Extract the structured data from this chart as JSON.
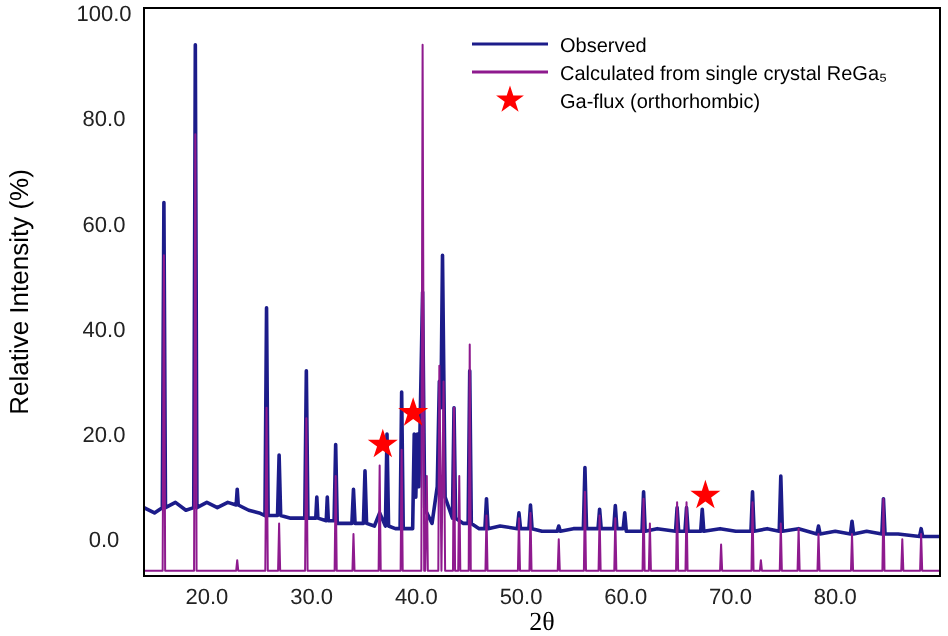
{
  "chart_data": {
    "type": "line",
    "xlabel": "2θ",
    "ylabel": "Relative Intensity (%)",
    "xlim": [
      14,
      90
    ],
    "ylim": [
      -7,
      101
    ],
    "xticks": [
      {
        "value": 20,
        "label": "20.0"
      },
      {
        "value": 30,
        "label": "30.0"
      },
      {
        "value": 40,
        "label": "40.0"
      },
      {
        "value": 50,
        "label": "50.0"
      },
      {
        "value": 60,
        "label": "60.0"
      },
      {
        "value": 70,
        "label": "70.0"
      },
      {
        "value": 80,
        "label": "80.0"
      }
    ],
    "yticks": [
      {
        "value": 0,
        "label": "0.0"
      },
      {
        "value": 20,
        "label": "20.0"
      },
      {
        "value": 40,
        "label": "40.0"
      },
      {
        "value": 60,
        "label": "60.0"
      },
      {
        "value": 80,
        "label": "80.0"
      },
      {
        "value": 100,
        "label": "100.0"
      }
    ],
    "grid": false,
    "legend": "top right",
    "series": [
      {
        "name": "Observed",
        "color": "#1c1c8a",
        "x": [
          14,
          15.0,
          15.75,
          15.9,
          16.05,
          17.0,
          18.0,
          18.75,
          18.9,
          19.05,
          20.0,
          21.0,
          22.0,
          22.8,
          22.9,
          23.0,
          24.0,
          25.0,
          25.55,
          25.7,
          25.85,
          26.75,
          26.9,
          27.05,
          28.0,
          29.35,
          29.5,
          29.65,
          30.4,
          30.5,
          30.6,
          31.4,
          31.5,
          31.6,
          32.15,
          32.3,
          32.45,
          33.0,
          33.85,
          34.0,
          34.15,
          34.95,
          35.1,
          35.25,
          36.0,
          36.5,
          37.05,
          37.2,
          37.35,
          38.0,
          38.45,
          38.6,
          38.75,
          39.65,
          39.8,
          39.95,
          40.1,
          40.25,
          40.6,
          40.8,
          41.0,
          41.5,
          42.0,
          42.2,
          42.35,
          42.5,
          42.75,
          43.45,
          43.6,
          43.75,
          44.5,
          44.95,
          45.1,
          45.25,
          46.0,
          46.55,
          46.7,
          46.85,
          48.0,
          49.65,
          49.8,
          49.95,
          50.75,
          50.9,
          51.05,
          52.0,
          53.45,
          53.6,
          53.75,
          55.0,
          55.95,
          56.1,
          56.25,
          57.35,
          57.5,
          57.65,
          58.85,
          59.0,
          59.15,
          59.75,
          59.9,
          60.05,
          61.55,
          61.7,
          61.85,
          63.0,
          64.75,
          64.9,
          65.05,
          65.65,
          65.8,
          65.95,
          67.15,
          67.3,
          67.45,
          69.0,
          70.5,
          71.95,
          72.1,
          72.25,
          73.5,
          74.65,
          74.8,
          74.95,
          76.5,
          78.25,
          78.4,
          78.55,
          80.0,
          81.45,
          81.6,
          81.75,
          83.0,
          84.45,
          84.6,
          84.75,
          86.0,
          88.05,
          88.2,
          88.35,
          90
        ],
        "values": [
          6,
          5,
          6,
          64,
          6,
          7,
          5.5,
          6,
          94,
          6,
          7,
          6,
          7,
          6.5,
          9.5,
          6.5,
          5.5,
          5,
          4.5,
          44,
          4.5,
          4.5,
          16,
          4.5,
          4,
          4,
          32,
          4,
          4,
          8,
          4,
          3.5,
          8,
          3.5,
          3.5,
          18,
          3,
          3,
          3,
          9.5,
          3,
          3,
          13,
          3,
          2.5,
          5,
          2.5,
          20,
          2.5,
          2,
          2,
          28,
          2,
          2,
          20,
          8,
          20,
          10,
          47,
          6,
          5,
          3,
          10,
          30,
          25,
          54,
          8,
          4,
          25,
          4,
          3,
          3,
          32,
          3,
          2,
          2,
          7.7,
          2,
          2.5,
          2,
          5,
          2,
          2,
          6.5,
          2,
          1.5,
          1.5,
          2.5,
          1.5,
          2,
          2,
          13.6,
          2,
          2,
          5.7,
          2,
          2,
          6.4,
          2,
          2,
          5,
          1.5,
          1.5,
          9,
          1.5,
          2,
          1.5,
          6,
          1.5,
          1.5,
          6,
          1.5,
          1.5,
          5.7,
          1.5,
          2,
          1.5,
          1.5,
          9,
          1.5,
          2,
          1.5,
          12,
          1.5,
          2,
          1,
          2.5,
          1,
          1.5,
          1,
          3.4,
          1,
          1.5,
          1,
          7.7,
          1,
          1,
          0.5,
          2,
          0.5,
          0.5
        ]
      },
      {
        "name": "Calculated from single crystal ReGa₅",
        "color": "#8e1a8e",
        "x": [
          14,
          15.78,
          15.9,
          16.02,
          18.78,
          18.9,
          19.02,
          22.8,
          22.9,
          23.0,
          25.58,
          25.7,
          25.82,
          26.8,
          26.9,
          27.0,
          29.38,
          29.5,
          29.62,
          32.2,
          32.3,
          32.4,
          33.9,
          34.0,
          34.1,
          36.4,
          36.5,
          36.6,
          38.5,
          38.6,
          38.7,
          40.48,
          40.6,
          40.75,
          40.85,
          41.0,
          41.1,
          42.1,
          42.2,
          42.4,
          42.6,
          42.75,
          43.5,
          43.6,
          43.7,
          44.0,
          44.1,
          44.2,
          45.0,
          45.1,
          45.2,
          46.6,
          46.7,
          46.8,
          49.7,
          49.8,
          49.9,
          50.8,
          50.9,
          51.0,
          53.5,
          53.6,
          53.7,
          56.0,
          56.1,
          56.2,
          57.4,
          57.5,
          57.6,
          58.9,
          59.0,
          59.1,
          61.6,
          61.7,
          61.8,
          62.2,
          62.3,
          62.4,
          64.8,
          64.9,
          65.0,
          65.7,
          65.8,
          65.9,
          69.0,
          69.1,
          69.2,
          72.0,
          72.1,
          72.2,
          72.8,
          72.9,
          73.0,
          74.7,
          74.8,
          74.9,
          76.4,
          76.5,
          76.6,
          78.3,
          78.4,
          78.5,
          81.5,
          81.6,
          81.7,
          84.5,
          84.6,
          84.7,
          86.3,
          86.4,
          86.5,
          88.1,
          88.2,
          88.3,
          90
        ],
        "values": [
          -6,
          -6,
          54,
          -6,
          -6,
          77,
          -6,
          -6,
          -4,
          -6,
          -6,
          25,
          -6,
          -6,
          3,
          -6,
          -6,
          23,
          -6,
          -6,
          12,
          -6,
          -6,
          1,
          -6,
          -6,
          14,
          -6,
          -6,
          17,
          -6,
          -6,
          94,
          -6,
          -6,
          12,
          -6,
          -6,
          33,
          -6,
          30,
          -6,
          -6,
          25,
          -6,
          -6,
          12,
          -6,
          -6,
          37,
          -6,
          -6,
          4.5,
          -6,
          -6,
          4,
          -6,
          -6,
          5,
          -6,
          -6,
          0,
          -6,
          -6,
          9,
          -6,
          -6,
          4.5,
          -6,
          -6,
          4,
          -6,
          -6,
          7.7,
          -6,
          -6,
          3,
          -6,
          -6,
          7,
          -6,
          -6,
          7,
          -6,
          -6,
          -1,
          -6,
          -6,
          7,
          -6,
          -6,
          -4,
          -6,
          -6,
          3,
          -6,
          -6,
          2,
          -6,
          -6,
          1,
          -6,
          -6,
          1,
          -6,
          -6,
          7.7,
          -6,
          -6,
          0,
          -6,
          -6,
          1,
          -6,
          -6
        ]
      },
      {
        "name": "Ga-flux (orthorhombic)",
        "color": "#ff0000",
        "type": "scatter",
        "marker": "star",
        "x": [
          36.8,
          39.7,
          67.6
        ],
        "values": [
          18,
          24,
          8.3
        ]
      }
    ]
  }
}
